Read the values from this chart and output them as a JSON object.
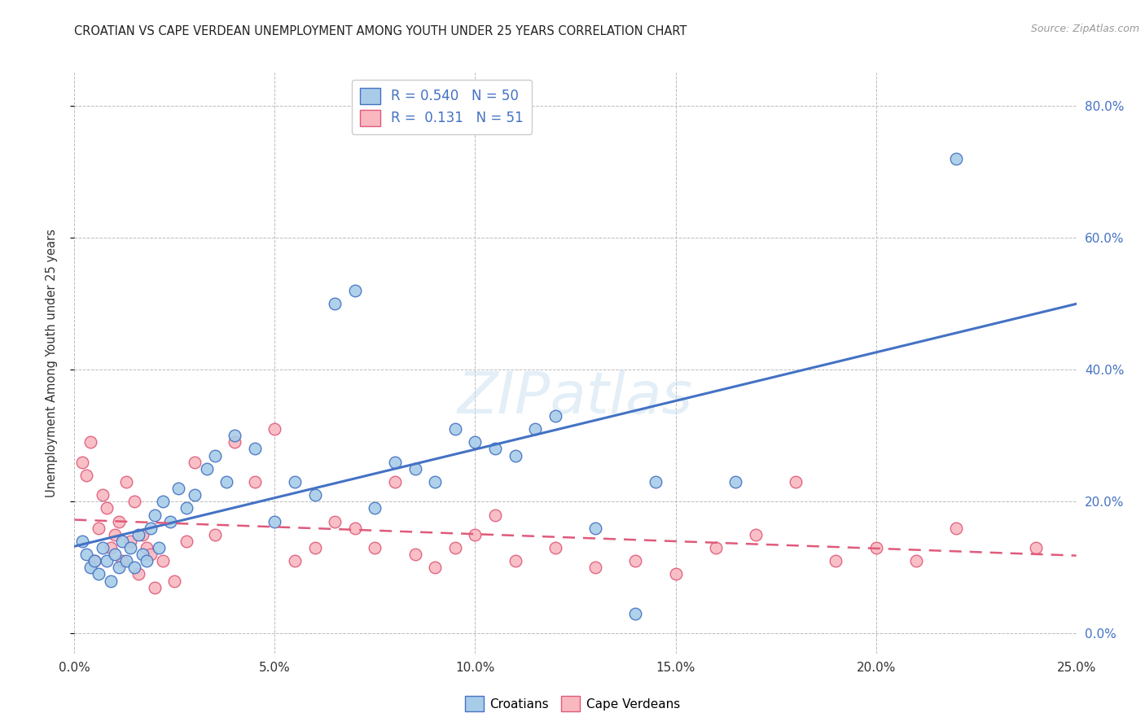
{
  "title": "CROATIAN VS CAPE VERDEAN UNEMPLOYMENT AMONG YOUTH UNDER 25 YEARS CORRELATION CHART",
  "source": "Source: ZipAtlas.com",
  "ylabel": "Unemployment Among Youth under 25 years",
  "xlabel_vals": [
    0,
    5,
    10,
    15,
    20,
    25
  ],
  "ylabel_vals": [
    0,
    20,
    40,
    60,
    80
  ],
  "xlim": [
    0,
    25
  ],
  "ylim": [
    -3,
    85
  ],
  "R_croatian": 0.54,
  "N_croatian": 50,
  "R_cape_verdean": 0.131,
  "N_cape_verdean": 51,
  "croatian_color": "#a8cce8",
  "cape_verdean_color": "#f9b8c0",
  "line_croatian_color": "#4472c4",
  "line_cape_verdean_color": "#e05a7a",
  "background_color": "#ffffff",
  "grid_color": "#bbbbbb",
  "legend_label_croatian": "Croatians",
  "legend_label_cape_verdean": "Cape Verdeans",
  "croatian_x": [
    0.2,
    0.3,
    0.4,
    0.5,
    0.6,
    0.7,
    0.8,
    0.9,
    1.0,
    1.1,
    1.2,
    1.3,
    1.4,
    1.5,
    1.6,
    1.7,
    1.8,
    1.9,
    2.0,
    2.1,
    2.2,
    2.4,
    2.6,
    2.8,
    3.0,
    3.3,
    3.5,
    3.8,
    4.0,
    4.5,
    5.0,
    5.5,
    6.0,
    6.5,
    7.0,
    7.5,
    8.0,
    8.5,
    9.0,
    9.5,
    10.0,
    10.5,
    11.0,
    11.5,
    12.0,
    13.0,
    14.0,
    14.5,
    16.5,
    22.0
  ],
  "croatian_y": [
    14,
    12,
    10,
    11,
    9,
    13,
    11,
    8,
    12,
    10,
    14,
    11,
    13,
    10,
    15,
    12,
    11,
    16,
    18,
    13,
    20,
    17,
    22,
    19,
    21,
    25,
    27,
    23,
    30,
    28,
    17,
    23,
    21,
    50,
    52,
    19,
    26,
    25,
    23,
    31,
    29,
    28,
    27,
    31,
    33,
    16,
    3,
    23,
    23,
    72
  ],
  "cape_verdean_x": [
    0.2,
    0.3,
    0.4,
    0.5,
    0.6,
    0.7,
    0.8,
    0.9,
    1.0,
    1.1,
    1.2,
    1.3,
    1.4,
    1.5,
    1.6,
    1.7,
    1.8,
    1.9,
    2.0,
    2.2,
    2.5,
    2.8,
    3.0,
    3.5,
    4.0,
    4.5,
    5.0,
    5.5,
    6.0,
    6.5,
    7.0,
    7.5,
    8.0,
    8.5,
    9.0,
    9.5,
    10.0,
    10.5,
    11.0,
    12.0,
    13.0,
    14.0,
    15.0,
    16.0,
    17.0,
    18.0,
    19.0,
    20.0,
    21.0,
    22.0,
    24.0
  ],
  "cape_verdean_y": [
    26,
    24,
    29,
    11,
    16,
    21,
    19,
    13,
    15,
    17,
    11,
    23,
    14,
    20,
    9,
    15,
    13,
    12,
    7,
    11,
    8,
    14,
    26,
    15,
    29,
    23,
    31,
    11,
    13,
    17,
    16,
    13,
    23,
    12,
    10,
    13,
    15,
    18,
    11,
    13,
    10,
    11,
    9,
    13,
    15,
    23,
    11,
    13,
    11,
    16,
    13
  ]
}
